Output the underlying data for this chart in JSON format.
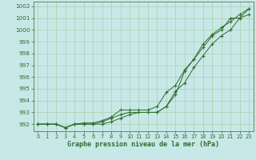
{
  "title": "Graphe pression niveau de la mer (hPa)",
  "bg_color": "#c8e8e8",
  "grid_color": "#aacfaa",
  "line_color": "#2d6e2d",
  "x_ticks": [
    0,
    1,
    2,
    3,
    4,
    5,
    6,
    7,
    8,
    9,
    10,
    11,
    12,
    13,
    14,
    15,
    16,
    17,
    18,
    19,
    20,
    21,
    22,
    23
  ],
  "y_ticks": [
    992,
    993,
    994,
    995,
    996,
    997,
    998,
    999,
    1000,
    1001,
    1002
  ],
  "ylim": [
    991.4,
    1002.4
  ],
  "xlim": [
    -0.5,
    23.5
  ],
  "series1": [
    992.0,
    992.0,
    992.0,
    991.7,
    992.0,
    992.0,
    992.0,
    992.0,
    992.2,
    992.5,
    992.8,
    993.0,
    993.0,
    993.0,
    993.5,
    994.5,
    996.5,
    997.5,
    998.5,
    999.5,
    1000.0,
    1001.0,
    1001.0,
    1001.8
  ],
  "series2": [
    992.0,
    992.0,
    992.0,
    991.7,
    992.0,
    992.0,
    992.0,
    992.2,
    992.5,
    992.8,
    993.0,
    993.0,
    993.0,
    993.0,
    993.5,
    994.8,
    995.5,
    996.8,
    997.8,
    998.8,
    999.5,
    1000.0,
    1001.0,
    1001.3
  ],
  "series3": [
    992.0,
    992.0,
    992.0,
    991.7,
    992.0,
    992.1,
    992.1,
    992.3,
    992.6,
    993.2,
    993.2,
    993.2,
    993.2,
    993.5,
    994.7,
    995.3,
    996.6,
    997.5,
    998.8,
    999.6,
    1000.2,
    1000.7,
    1001.3,
    1001.8
  ]
}
